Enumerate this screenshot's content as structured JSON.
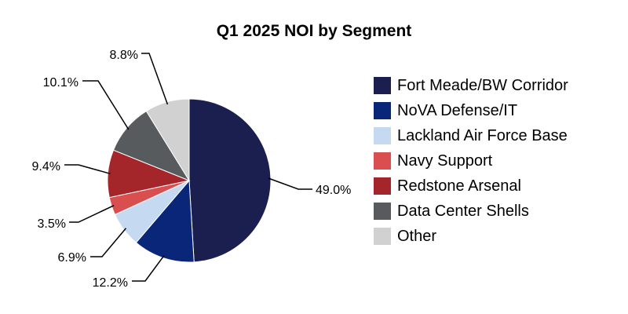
{
  "chart_data": {
    "type": "pie",
    "title": "Q1 2025 NOI by Segment",
    "legend_position": "right",
    "start": "top, clockwise",
    "slices": [
      {
        "name": "Fort Meade/BW Corridor",
        "value": 49.0,
        "label": "49.0%",
        "color": "#1a1f4f"
      },
      {
        "name": "NoVA Defense/IT",
        "value": 12.2,
        "label": "12.2%",
        "color": "#0a2679"
      },
      {
        "name": "Lackland Air Force Base",
        "value": 6.9,
        "label": "6.9%",
        "color": "#c5d9f0"
      },
      {
        "name": "Navy Support",
        "value": 3.5,
        "label": "3.5%",
        "color": "#d94f4f"
      },
      {
        "name": "Redstone Arsenal",
        "value": 9.4,
        "label": "9.4%",
        "color": "#a5262a"
      },
      {
        "name": "Data Center Shells",
        "value": 10.1,
        "label": "10.1%",
        "color": "#575b5d"
      },
      {
        "name": "Other",
        "value": 8.8,
        "label": "8.8%",
        "color": "#d1d1d1"
      }
    ]
  }
}
